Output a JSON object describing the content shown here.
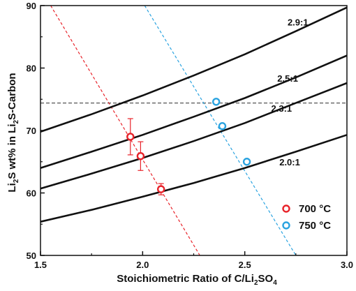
{
  "chart_data": {
    "type": "line",
    "xlabel": "Stoichiometric Ratio of C/Li2SO4",
    "ylabel": "Li2S wt% in Li2S-Carbon",
    "xlim": [
      1.5,
      3.0
    ],
    "ylim": [
      50,
      90
    ],
    "xticks": [
      "1.5",
      "2.0",
      "2.5",
      "3.0"
    ],
    "yticks": [
      "50",
      "60",
      "70",
      "80",
      "90"
    ],
    "grid": false,
    "curves": [
      {
        "name": "2.9:1",
        "x": [
          1.5,
          1.75,
          2.0,
          2.25,
          2.5,
          2.75,
          3.0
        ],
        "y": [
          69.8,
          72.6,
          75.6,
          78.8,
          82.2,
          85.9,
          89.7
        ]
      },
      {
        "name": "2.5:1",
        "x": [
          1.5,
          1.75,
          2.0,
          2.25,
          2.5,
          2.75,
          3.0
        ],
        "y": [
          64.0,
          66.6,
          69.3,
          72.2,
          75.2,
          78.5,
          82.0
        ]
      },
      {
        "name": "2.3:1",
        "x": [
          1.5,
          1.75,
          2.0,
          2.25,
          2.5,
          2.75,
          3.0
        ],
        "y": [
          60.7,
          63.1,
          65.6,
          68.3,
          71.2,
          74.4,
          77.6
        ]
      },
      {
        "name": "2.0:1",
        "x": [
          1.5,
          1.75,
          2.0,
          2.25,
          2.5,
          2.75,
          3.0
        ],
        "y": [
          55.4,
          57.3,
          59.4,
          61.6,
          64.0,
          66.6,
          69.3
        ]
      }
    ],
    "horizontal_line": {
      "y": 74.4,
      "color": "#555555"
    },
    "series": [
      {
        "name": "700 °C",
        "color": "#e8232a",
        "points": [
          {
            "x": 1.94,
            "y": 69.0,
            "err": 2.9
          },
          {
            "x": 1.99,
            "y": 65.9,
            "err": 2.3
          },
          {
            "x": 2.09,
            "y": 60.6,
            "err": 0.9
          }
        ],
        "guide_line": {
          "x": [
            1.55,
            2.28
          ],
          "y": [
            90,
            50
          ]
        }
      },
      {
        "name": "750 °C",
        "color": "#2aa3e0",
        "points": [
          {
            "x": 2.36,
            "y": 74.6
          },
          {
            "x": 2.39,
            "y": 70.7
          },
          {
            "x": 2.51,
            "y": 65.0
          }
        ],
        "guide_line": {
          "x": [
            2.01,
            2.75
          ],
          "y": [
            90,
            50
          ]
        }
      }
    ],
    "legend_position": "bottom-right"
  }
}
